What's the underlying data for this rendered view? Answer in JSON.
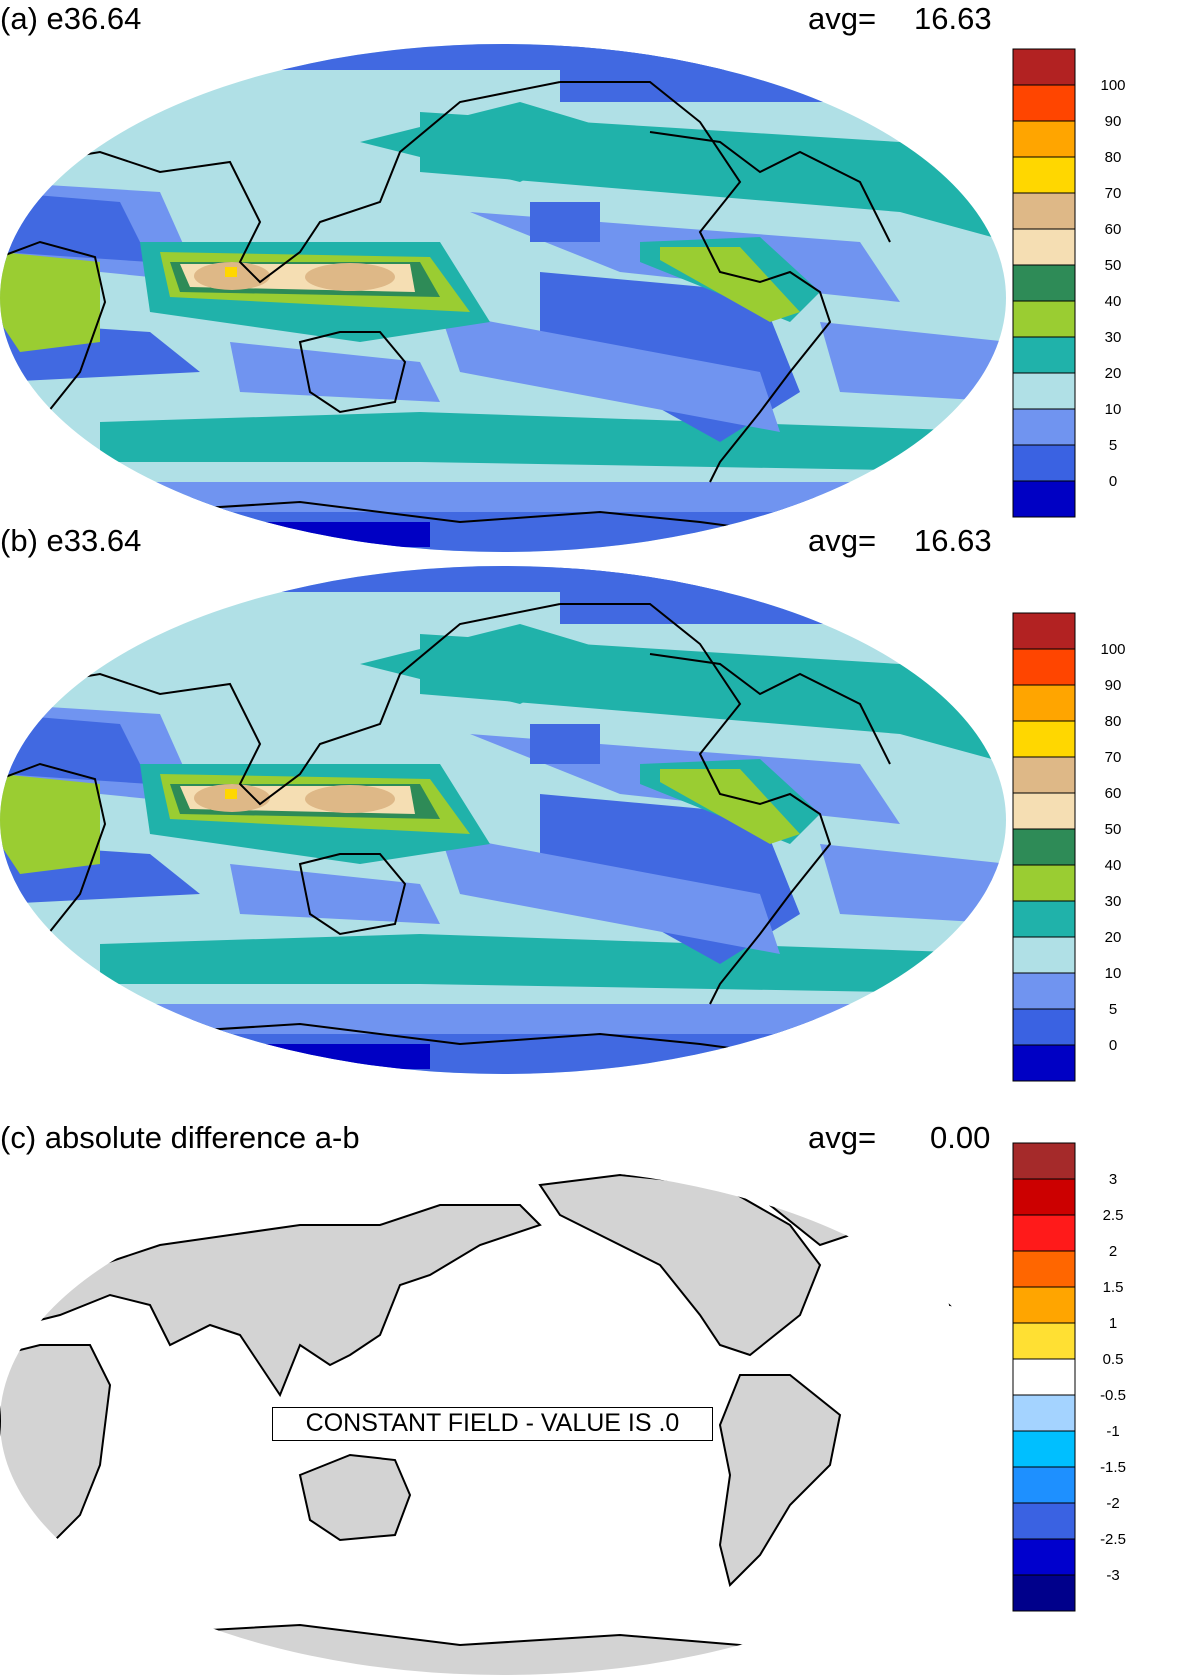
{
  "panels": [
    {
      "title": "(a) e36.64",
      "avg_label": "avg=",
      "avg_value": "16.63",
      "colorbar": {
        "colors": [
          "#0000c4",
          "#3a62e2",
          "#7094f0",
          "#b0e0e6",
          "#20b2aa",
          "#9acd32",
          "#2e8b57",
          "#f5deb3",
          "#deb887",
          "#ffd700",
          "#ffa500",
          "#ff4500",
          "#b22222"
        ],
        "labels": [
          "0",
          "5",
          "10",
          "20",
          "30",
          "40",
          "50",
          "60",
          "70",
          "80",
          "90",
          "100"
        ]
      }
    },
    {
      "title": "(b) e33.64",
      "avg_label": "avg=",
      "avg_value": "16.63",
      "colorbar": {
        "colors": [
          "#0000c4",
          "#3a62e2",
          "#7094f0",
          "#b0e0e6",
          "#20b2aa",
          "#9acd32",
          "#2e8b57",
          "#f5deb3",
          "#deb887",
          "#ffd700",
          "#ffa500",
          "#ff4500",
          "#b22222"
        ],
        "labels": [
          "0",
          "5",
          "10",
          "20",
          "30",
          "40",
          "50",
          "60",
          "70",
          "80",
          "90",
          "100"
        ]
      }
    },
    {
      "title": "(c) absolute difference a-b",
      "avg_label": "avg=",
      "avg_value": "0.00",
      "annotation": "CONSTANT FIELD - VALUE IS .0",
      "colorbar": {
        "colors": [
          "#00008b",
          "#0000cd",
          "#3a62e2",
          "#1e90ff",
          "#00bfff",
          "#a4d3ff",
          "#ffffff",
          "#ffe033",
          "#ffa500",
          "#ff6600",
          "#ff1a1a",
          "#cc0000",
          "#a52a2a"
        ],
        "labels": [
          "-3",
          "-2.5",
          "-2",
          "-1.5",
          "-1",
          "-0.5",
          "0.5",
          "1",
          "1.5",
          "2",
          "2.5",
          "3"
        ]
      }
    }
  ],
  "map_colors": {
    "ocean_base": "#b0e0e6",
    "land_gray": "#d3d3d3",
    "coast": "#000000"
  }
}
